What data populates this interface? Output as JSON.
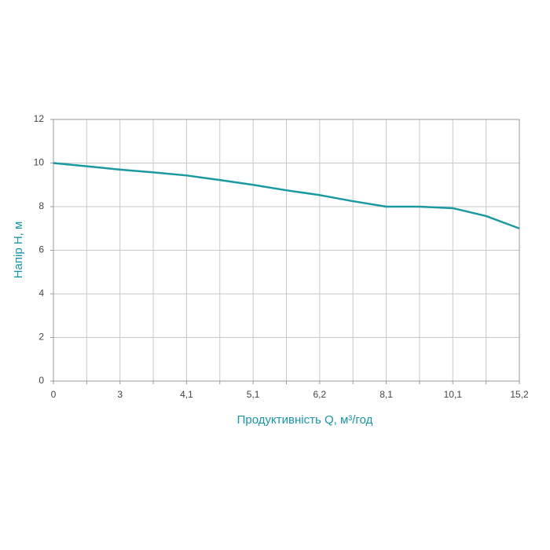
{
  "chart_data": {
    "type": "line",
    "x_label": "Продуктивність Q, м³/год",
    "y_label": "Напір Н, м",
    "categories": [
      "0",
      null,
      "3",
      null,
      "4,1",
      null,
      "5,1",
      null,
      "6,2",
      null,
      "8,1",
      null,
      "10,1",
      null,
      "15,2"
    ],
    "values": [
      10.0,
      9.85,
      9.7,
      9.57,
      9.43,
      9.22,
      9.0,
      8.75,
      8.53,
      8.25,
      8.0,
      8.0,
      7.93,
      7.57,
      7.0
    ],
    "color": "#1a9aa0",
    "ylim": [
      0,
      12
    ],
    "yticks": [
      0,
      2,
      4,
      6,
      8,
      10,
      12
    ],
    "grid": true
  }
}
